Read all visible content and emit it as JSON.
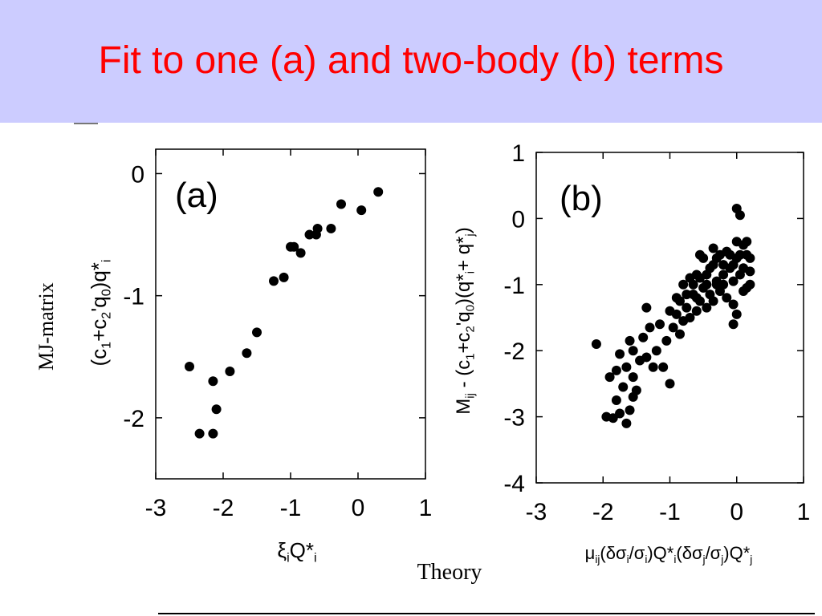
{
  "slide": {
    "title": "Fit to one (a) and two-body (b) terms",
    "side_label": "MJ-matrix",
    "bottom_label": "Theory",
    "colors": {
      "header_bg": "#ccccff",
      "title": "#ff0000",
      "points": "#000000"
    }
  },
  "chart_data": [
    {
      "type": "scatter",
      "panel_label": "(a)",
      "xlim": [
        -3,
        1
      ],
      "ylim": [
        -2.5,
        0.2
      ],
      "x_ticks": [
        "-3",
        "-2",
        "-1",
        "0",
        "1"
      ],
      "y_ticks": [
        "0",
        "-1",
        "-2"
      ],
      "xlabel_parts": [
        "ξ",
        "i",
        "Q*",
        "i"
      ],
      "ylabel_parts": [
        "(c",
        "1",
        "+c",
        "2",
        "'q",
        "0",
        ")q*",
        "i"
      ],
      "grid": false,
      "points": [
        [
          0.3,
          -0.15
        ],
        [
          0.05,
          -0.3
        ],
        [
          -0.25,
          -0.25
        ],
        [
          -0.4,
          -0.45
        ],
        [
          -0.6,
          -0.45
        ],
        [
          -0.62,
          -0.5
        ],
        [
          -0.72,
          -0.5
        ],
        [
          -0.85,
          -0.65
        ],
        [
          -0.95,
          -0.6
        ],
        [
          -1.0,
          -0.6
        ],
        [
          -1.1,
          -0.85
        ],
        [
          -1.25,
          -0.88
        ],
        [
          -1.5,
          -1.3
        ],
        [
          -1.65,
          -1.47
        ],
        [
          -1.9,
          -1.62
        ],
        [
          -2.15,
          -1.7
        ],
        [
          -2.1,
          -1.93
        ],
        [
          -2.5,
          -1.58
        ],
        [
          -2.35,
          -2.13
        ],
        [
          -2.15,
          -2.13
        ]
      ]
    },
    {
      "type": "scatter",
      "panel_label": "(b)",
      "xlim": [
        -3,
        1
      ],
      "ylim": [
        -4,
        1
      ],
      "x_ticks": [
        "-3",
        "-2",
        "-1",
        "0",
        "1"
      ],
      "y_ticks": [
        "1",
        "0",
        "-1",
        "-2",
        "-3",
        "-4"
      ],
      "xlabel_parts": [
        "μ",
        "ij",
        "(δσ",
        "i",
        "/σ",
        "i",
        ")Q*",
        "i",
        "(δσ",
        "j",
        "/σ",
        "j",
        ")Q*",
        "j"
      ],
      "ylabel_parts": [
        "M",
        "ij",
        " - (c",
        "1",
        "+c",
        "2",
        "'q",
        "0",
        ")(q*",
        "i",
        "+ q*",
        "j",
        ")"
      ],
      "grid": false,
      "points": [
        [
          -2.1,
          -1.9
        ],
        [
          -1.95,
          -3.0
        ],
        [
          -1.85,
          -3.02
        ],
        [
          -1.75,
          -2.95
        ],
        [
          -1.65,
          -3.1
        ],
        [
          -1.6,
          -2.9
        ],
        [
          -1.8,
          -2.75
        ],
        [
          -1.55,
          -2.7
        ],
        [
          -1.7,
          -2.55
        ],
        [
          -1.5,
          -2.6
        ],
        [
          -1.9,
          -2.4
        ],
        [
          -1.8,
          -2.3
        ],
        [
          -1.65,
          -2.25
        ],
        [
          -1.55,
          -2.4
        ],
        [
          -1.45,
          -2.15
        ],
        [
          -1.75,
          -2.05
        ],
        [
          -1.55,
          -2.0
        ],
        [
          -1.35,
          -2.1
        ],
        [
          -1.25,
          -2.25
        ],
        [
          -1.1,
          -2.25
        ],
        [
          -1.2,
          -2.0
        ],
        [
          -1.0,
          -2.5
        ],
        [
          -1.05,
          -1.85
        ],
        [
          -0.95,
          -1.65
        ],
        [
          -1.15,
          -1.6
        ],
        [
          -0.85,
          -1.75
        ],
        [
          -0.8,
          -1.55
        ],
        [
          -0.9,
          -1.45
        ],
        [
          -0.7,
          -1.5
        ],
        [
          -0.75,
          -1.35
        ],
        [
          -0.6,
          -1.4
        ],
        [
          -0.55,
          -1.25
        ],
        [
          -0.65,
          -1.15
        ],
        [
          -0.5,
          -1.05
        ],
        [
          -0.45,
          -1.35
        ],
        [
          -0.4,
          -1.15
        ],
        [
          -0.35,
          -1.25
        ],
        [
          -0.3,
          -0.95
        ],
        [
          -0.25,
          -1.1
        ],
        [
          -0.2,
          -0.85
        ],
        [
          -0.15,
          -1.2
        ],
        [
          -0.1,
          -0.75
        ],
        [
          -0.05,
          -0.95
        ],
        [
          0.0,
          -0.6
        ],
        [
          0.05,
          -0.55
        ],
        [
          0.0,
          -1.45
        ],
        [
          -0.05,
          -1.6
        ],
        [
          0.1,
          -0.4
        ],
        [
          0.15,
          -0.35
        ],
        [
          0.2,
          -0.6
        ],
        [
          0.2,
          -0.8
        ],
        [
          0.15,
          -1.05
        ],
        [
          0.2,
          -1.0
        ],
        [
          0.1,
          -0.75
        ],
        [
          0.0,
          0.15
        ],
        [
          0.05,
          0.05
        ],
        [
          -0.3,
          -0.6
        ],
        [
          -0.4,
          -0.75
        ],
        [
          -0.5,
          -0.6
        ],
        [
          -0.6,
          -0.85
        ],
        [
          -0.7,
          -0.9
        ],
        [
          -0.8,
          -1.0
        ],
        [
          -0.9,
          -1.2
        ],
        [
          -1.0,
          -1.4
        ],
        [
          -0.55,
          -0.55
        ],
        [
          -0.45,
          -0.85
        ],
        [
          -0.35,
          -0.7
        ],
        [
          -0.25,
          -0.55
        ],
        [
          -0.15,
          -0.5
        ],
        [
          -0.05,
          -0.7
        ],
        [
          0.05,
          -0.85
        ],
        [
          0.1,
          -1.1
        ],
        [
          -0.65,
          -1.0
        ],
        [
          -0.85,
          -1.25
        ],
        [
          -1.3,
          -1.65
        ],
        [
          -1.4,
          -1.8
        ],
        [
          -1.6,
          -1.85
        ],
        [
          -1.35,
          -1.35
        ],
        [
          -0.2,
          -0.7
        ],
        [
          -0.1,
          -0.55
        ],
        [
          0.0,
          -0.35
        ],
        [
          -0.3,
          -1.0
        ],
        [
          -0.45,
          -1.0
        ],
        [
          -0.6,
          -1.2
        ],
        [
          -0.75,
          -1.15
        ],
        [
          0.15,
          -0.55
        ],
        [
          -0.05,
          -1.3
        ],
        [
          -0.55,
          -0.9
        ],
        [
          -0.35,
          -0.45
        ],
        [
          -0.2,
          -1.0
        ]
      ]
    }
  ]
}
